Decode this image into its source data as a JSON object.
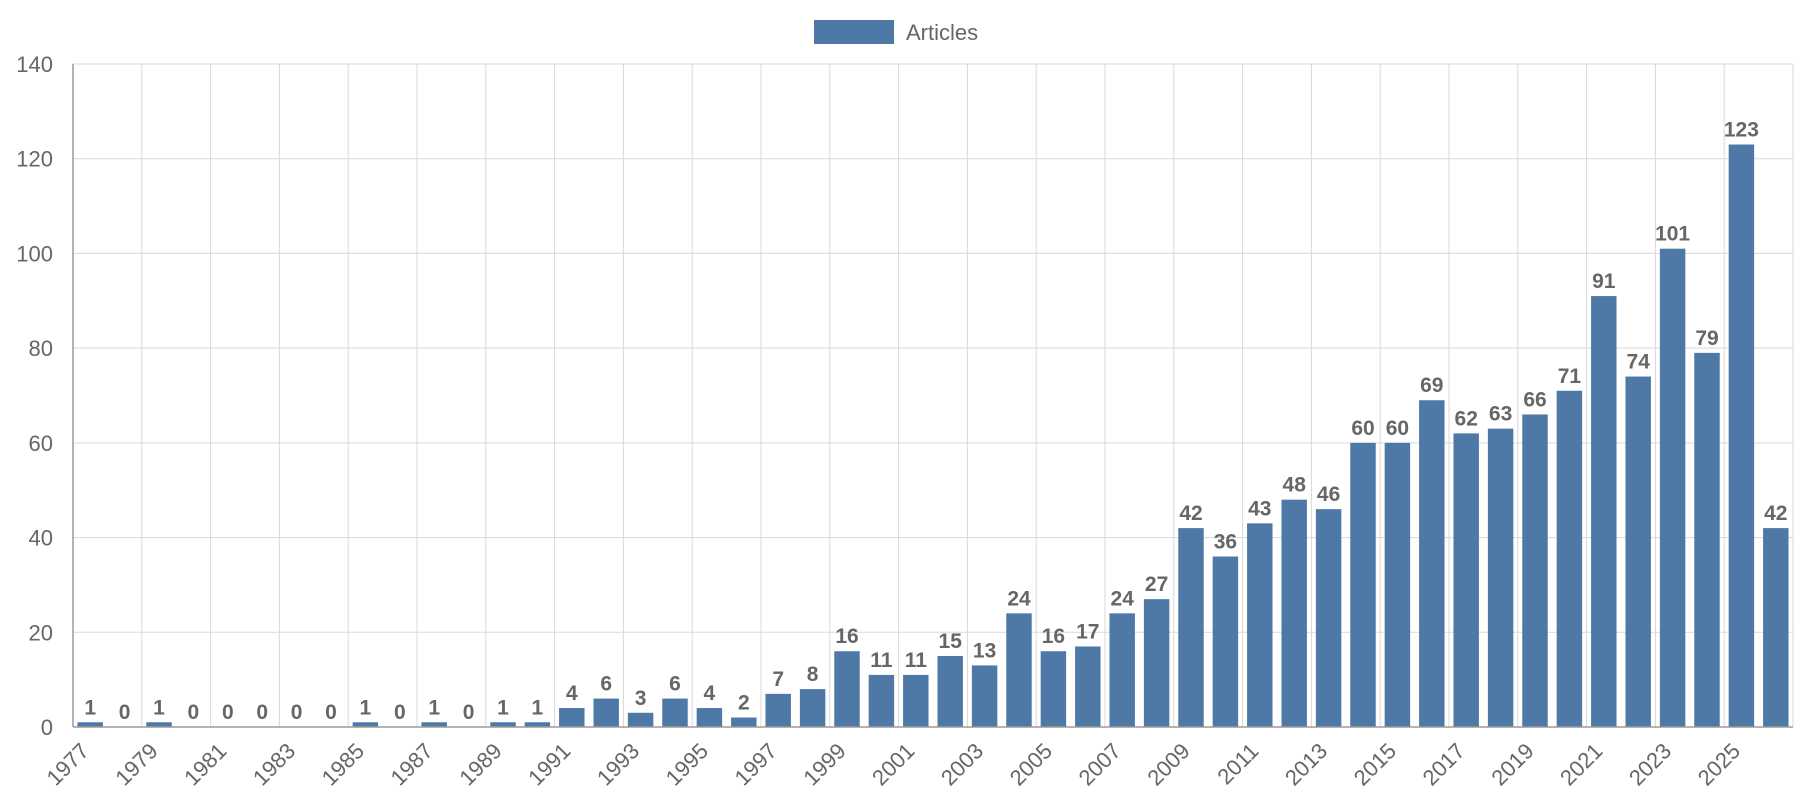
{
  "chart_data": {
    "type": "bar",
    "title": "",
    "xlabel": "",
    "ylabel": "",
    "ylim": [
      0,
      140
    ],
    "yticks": [
      0,
      20,
      40,
      60,
      80,
      100,
      120,
      140
    ],
    "grid": true,
    "legend_position": "top-center",
    "categories": [
      "1977",
      "1978",
      "1979",
      "1980",
      "1981",
      "1982",
      "1983",
      "1984",
      "1985",
      "1986",
      "1987",
      "1988",
      "1989",
      "1990",
      "1991",
      "1992",
      "1993",
      "1994",
      "1995",
      "1996",
      "1997",
      "1998",
      "1999",
      "2000",
      "2001",
      "2002",
      "2003",
      "2004",
      "2005",
      "2006",
      "2007",
      "2008",
      "2009",
      "2010",
      "2011",
      "2012",
      "2013",
      "2014",
      "2015",
      "2016",
      "2017",
      "2018",
      "2019",
      "2020",
      "2021",
      "2022",
      "2023",
      "2024",
      "2025",
      "2026"
    ],
    "x_tick_labels": [
      "1977",
      "1979",
      "1981",
      "1983",
      "1985",
      "1987",
      "1989",
      "1991",
      "1993",
      "1995",
      "1997",
      "1999",
      "2001",
      "2003",
      "2005",
      "2007",
      "2009",
      "2011",
      "2013",
      "2015",
      "2017",
      "2019",
      "2021",
      "2023",
      "2025"
    ],
    "series": [
      {
        "name": "Articles",
        "color": "#4e78a6",
        "values": [
          1,
          0,
          1,
          0,
          0,
          0,
          0,
          0,
          1,
          0,
          1,
          0,
          1,
          1,
          4,
          6,
          3,
          6,
          4,
          2,
          7,
          8,
          16,
          11,
          11,
          15,
          13,
          24,
          16,
          17,
          24,
          27,
          42,
          36,
          43,
          48,
          46,
          60,
          60,
          69,
          62,
          63,
          66,
          71,
          91,
          74,
          101,
          79,
          123,
          42
        ]
      }
    ]
  }
}
